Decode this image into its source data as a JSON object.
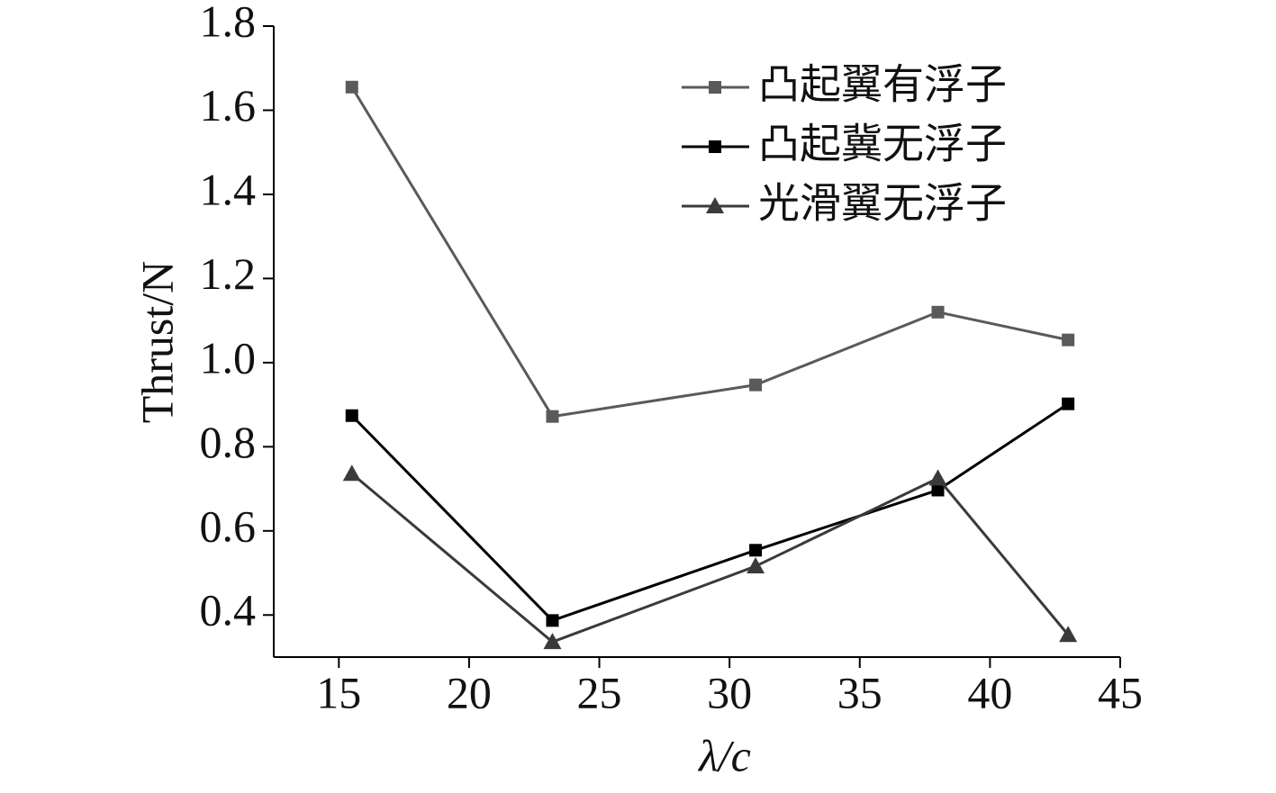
{
  "chart_data": {
    "type": "line",
    "x_label": "λ/c",
    "y_label": "Thrust/N",
    "x": [
      15.5,
      23.2,
      31.0,
      38.0,
      43.0
    ],
    "series": [
      {
        "name": "凸起翼有浮子",
        "color": "#5a5a5a",
        "marker": "square",
        "values": [
          1.655,
          0.872,
          0.947,
          1.12,
          1.054
        ]
      },
      {
        "name": "凸起冀无浮子",
        "color": "#000000",
        "marker": "square",
        "values": [
          0.874,
          0.387,
          0.554,
          0.697,
          0.902
        ]
      },
      {
        "name": "光滑翼无浮子",
        "color": "#3a3a3a",
        "marker": "triangle",
        "values": [
          0.736,
          0.336,
          0.516,
          0.725,
          0.353
        ]
      }
    ],
    "xlim": [
      12.5,
      45
    ],
    "xticks": [
      15,
      20,
      25,
      30,
      35,
      40,
      45
    ],
    "ylim": [
      0.3,
      1.8
    ],
    "yticks": [
      0.4,
      0.6,
      0.8,
      {
        "value": 1,
        "label": "1.0"
      },
      1.2,
      1.4,
      1.6,
      1.8
    ],
    "grid": false
  }
}
